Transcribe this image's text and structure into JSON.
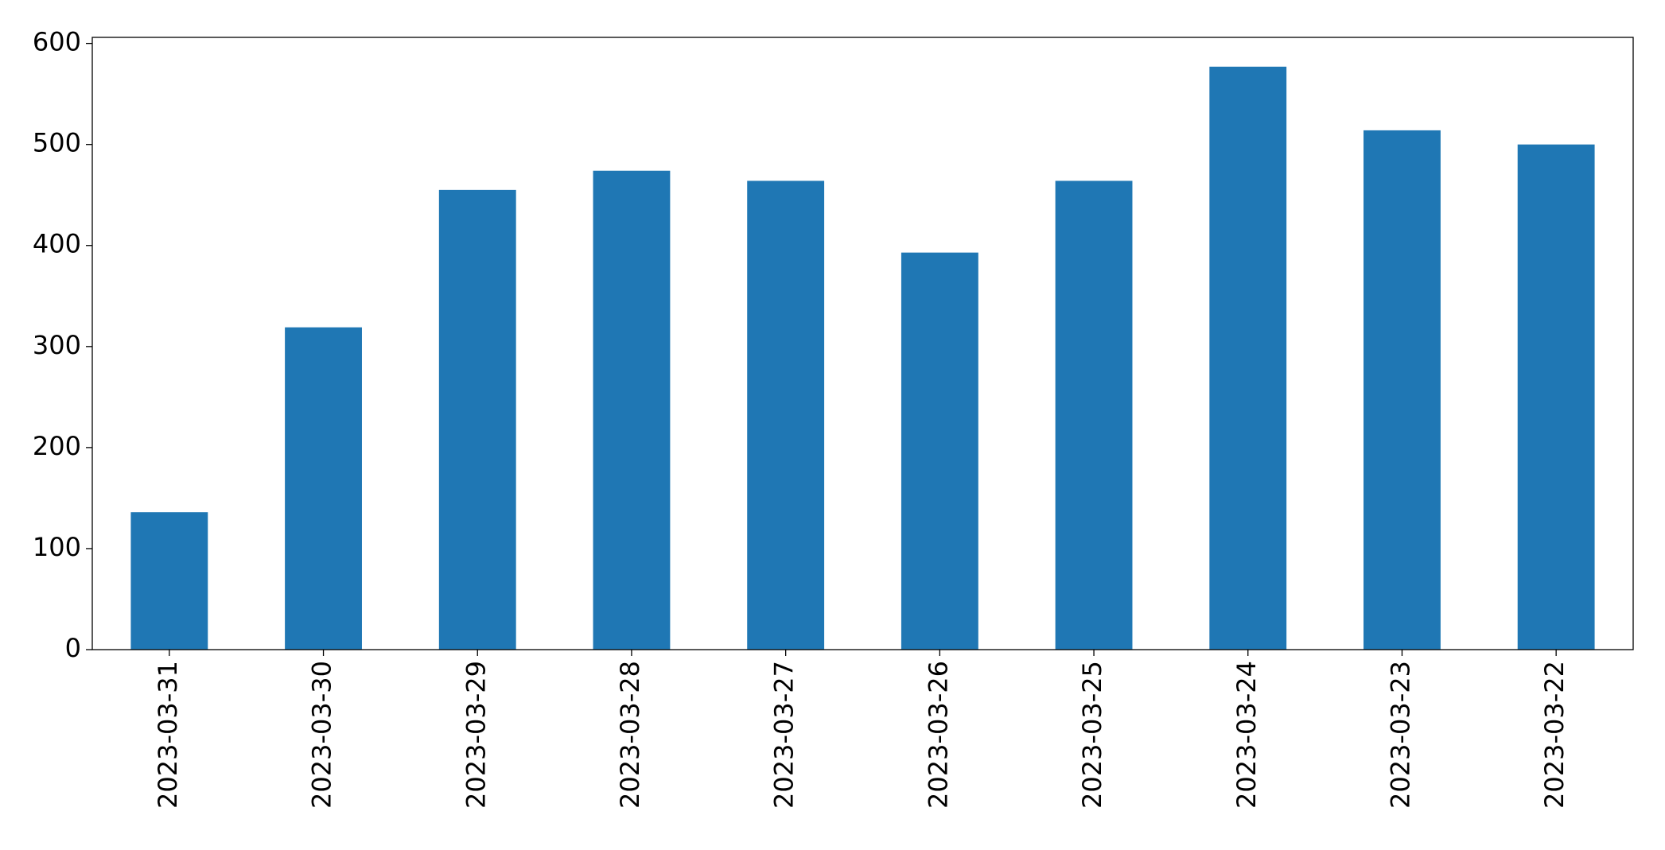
{
  "chart_data": {
    "type": "bar",
    "categories": [
      "2023-03-31",
      "2023-03-30",
      "2023-03-29",
      "2023-03-28",
      "2023-03-27",
      "2023-03-26",
      "2023-03-25",
      "2023-03-24",
      "2023-03-23",
      "2023-03-22"
    ],
    "values": [
      136,
      319,
      455,
      474,
      464,
      393,
      464,
      577,
      514,
      500
    ],
    "color": "#1f77b4",
    "ylim": [
      0,
      606
    ],
    "yticks": [
      0,
      100,
      200,
      300,
      400,
      500,
      600
    ],
    "grid": false
  }
}
